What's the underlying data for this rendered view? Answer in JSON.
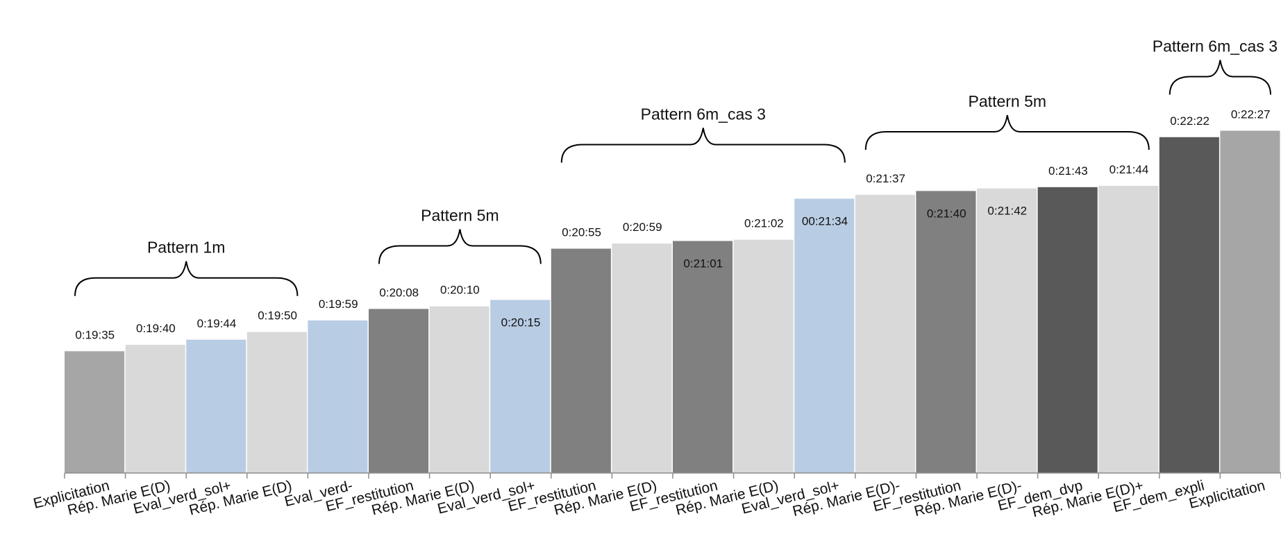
{
  "chart_data": {
    "type": "bar",
    "title": "",
    "xlabel": "",
    "ylabel": "",
    "y_axis_shown": false,
    "grid": false,
    "legend": "none",
    "ylim_seconds": [
      1080,
      1370
    ],
    "categories": [
      "Explicitation",
      "Rép. Marie E(D)",
      "Eval_verd_sol+",
      "Rép. Marie E(D)",
      "Eval_verd-",
      "EF_restitution",
      "Rép. Marie E(D)",
      "Eval_verd_sol+",
      "EF_restitution",
      "Rép. Marie E(D)",
      "EF_restitution",
      "Rép. Marie E(D)",
      "Eval_verd_sol+",
      "Rép. Marie E(D)-",
      "EF_restitution",
      "Rép. Marie E(D)-",
      "EF_dem_dvp",
      "Rép. Marie E(D)+",
      "EF_dem_expli",
      "Explicitation"
    ],
    "values": [
      "0:19:35",
      "0:19:40",
      "0:19:44",
      "0:19:50",
      "0:19:59",
      "0:20:08",
      "0:20:10",
      "0:20:15",
      "0:20:55",
      "0:20:59",
      "0:21:01",
      "0:21:02",
      "00:21:34",
      "0:21:37",
      "0:21:40",
      "0:21:42",
      "0:21:43",
      "0:21:44",
      "0:22:22",
      "0:22:27"
    ],
    "values_seconds": [
      1175,
      1180,
      1184,
      1190,
      1199,
      1208,
      1210,
      1215,
      1255,
      1259,
      1261,
      1262,
      1294,
      1297,
      1300,
      1302,
      1303,
      1304,
      1342,
      1347
    ],
    "label_inside": [
      false,
      false,
      false,
      false,
      false,
      false,
      false,
      true,
      false,
      false,
      true,
      false,
      true,
      false,
      true,
      true,
      false,
      false,
      false,
      false
    ],
    "colors": [
      "#a6a6a6",
      "#d9d9d9",
      "#b8cce4",
      "#d9d9d9",
      "#b8cce4",
      "#808080",
      "#d9d9d9",
      "#b8cce4",
      "#808080",
      "#d9d9d9",
      "#808080",
      "#d9d9d9",
      "#b8cce4",
      "#d9d9d9",
      "#808080",
      "#d9d9d9",
      "#595959",
      "#d9d9d9",
      "#595959",
      "#a6a6a6"
    ],
    "annotations": [
      {
        "text": "Pattern 1m",
        "first_bar": 0,
        "last_bar": 3
      },
      {
        "text": "Pattern 5m",
        "first_bar": 5,
        "last_bar": 7
      },
      {
        "text": "Pattern 6m_cas 3",
        "first_bar": 8,
        "last_bar": 12
      },
      {
        "text": "Pattern 5m",
        "first_bar": 13,
        "last_bar": 17
      },
      {
        "text": "Pattern 6m_cas 3",
        "first_bar": 18,
        "last_bar": 19
      }
    ]
  }
}
